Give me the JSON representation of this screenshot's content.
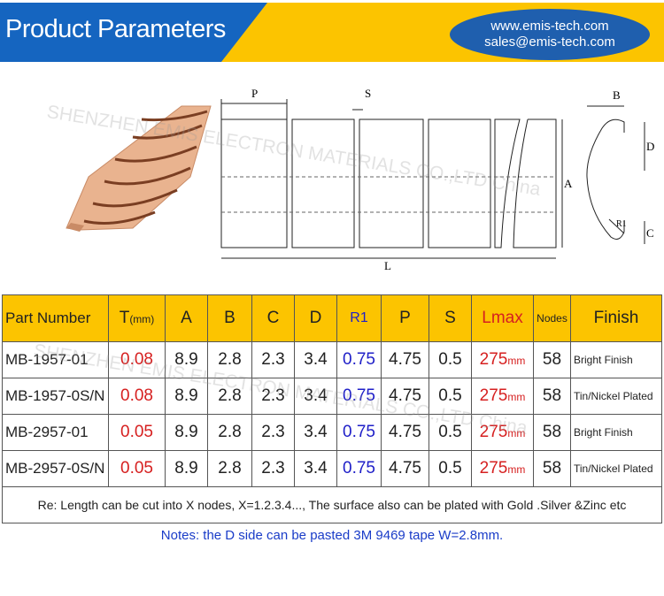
{
  "header": {
    "title": "Product Parameters",
    "website": "www.emis-tech.com",
    "email": "sales@emis-tech.com"
  },
  "watermark": "SHENZHEN EMIS ELECTRON MATERIALS CO.,LTD China",
  "diagram_labels": {
    "P": "P",
    "S": "S",
    "L": "L",
    "A": "A",
    "B": "B",
    "C": "C",
    "D": "D",
    "R1": "R1"
  },
  "table": {
    "headers": {
      "part": "Part Number",
      "t": "T",
      "t_unit": "(mm)",
      "a": "A",
      "b": "B",
      "c": "C",
      "d": "D",
      "r1": "R1",
      "p": "P",
      "s": "S",
      "lmax": "Lmax",
      "nodes": "Nodes",
      "finish": "Finish"
    },
    "rows": [
      {
        "part": "MB-1957-01",
        "t": "0.08",
        "a": "8.9",
        "b": "2.8",
        "c": "2.3",
        "d": "3.4",
        "r1": "0.75",
        "p": "4.75",
        "s": "0.5",
        "lmax": "275",
        "lunit": "mm",
        "nodes": "58",
        "finish": "Bright Finish"
      },
      {
        "part": "MB-1957-0S/N",
        "t": "0.08",
        "a": "8.9",
        "b": "2.8",
        "c": "2.3",
        "d": "3.4",
        "r1": "0.75",
        "p": "4.75",
        "s": "0.5",
        "lmax": "275",
        "lunit": "mm",
        "nodes": "58",
        "finish": "Tin/Nickel Plated"
      },
      {
        "part": "MB-2957-01",
        "t": "0.05",
        "a": "8.9",
        "b": "2.8",
        "c": "2.3",
        "d": "3.4",
        "r1": "0.75",
        "p": "4.75",
        "s": "0.5",
        "lmax": "275",
        "lunit": "mm",
        "nodes": "58",
        "finish": "Bright Finish"
      },
      {
        "part": "MB-2957-0S/N",
        "t": "0.05",
        "a": "8.9",
        "b": "2.8",
        "c": "2.3",
        "d": "3.4",
        "r1": "0.75",
        "p": "4.75",
        "s": "0.5",
        "lmax": "275",
        "lunit": "mm",
        "nodes": "58",
        "finish": "Tin/Nickel Plated"
      }
    ],
    "remark": "Re: Length can be cut into X  nodes, X=1.2.3.4..., The surface also can be plated with Gold .Silver &Zinc etc"
  },
  "notes": "Notes: the D side can be pasted 3M 9469 tape W=2.8mm.",
  "colors": {
    "banner_blue": "#1565c0",
    "banner_yellow": "#fcc400",
    "red": "#d62020",
    "blue": "#2020c8"
  }
}
